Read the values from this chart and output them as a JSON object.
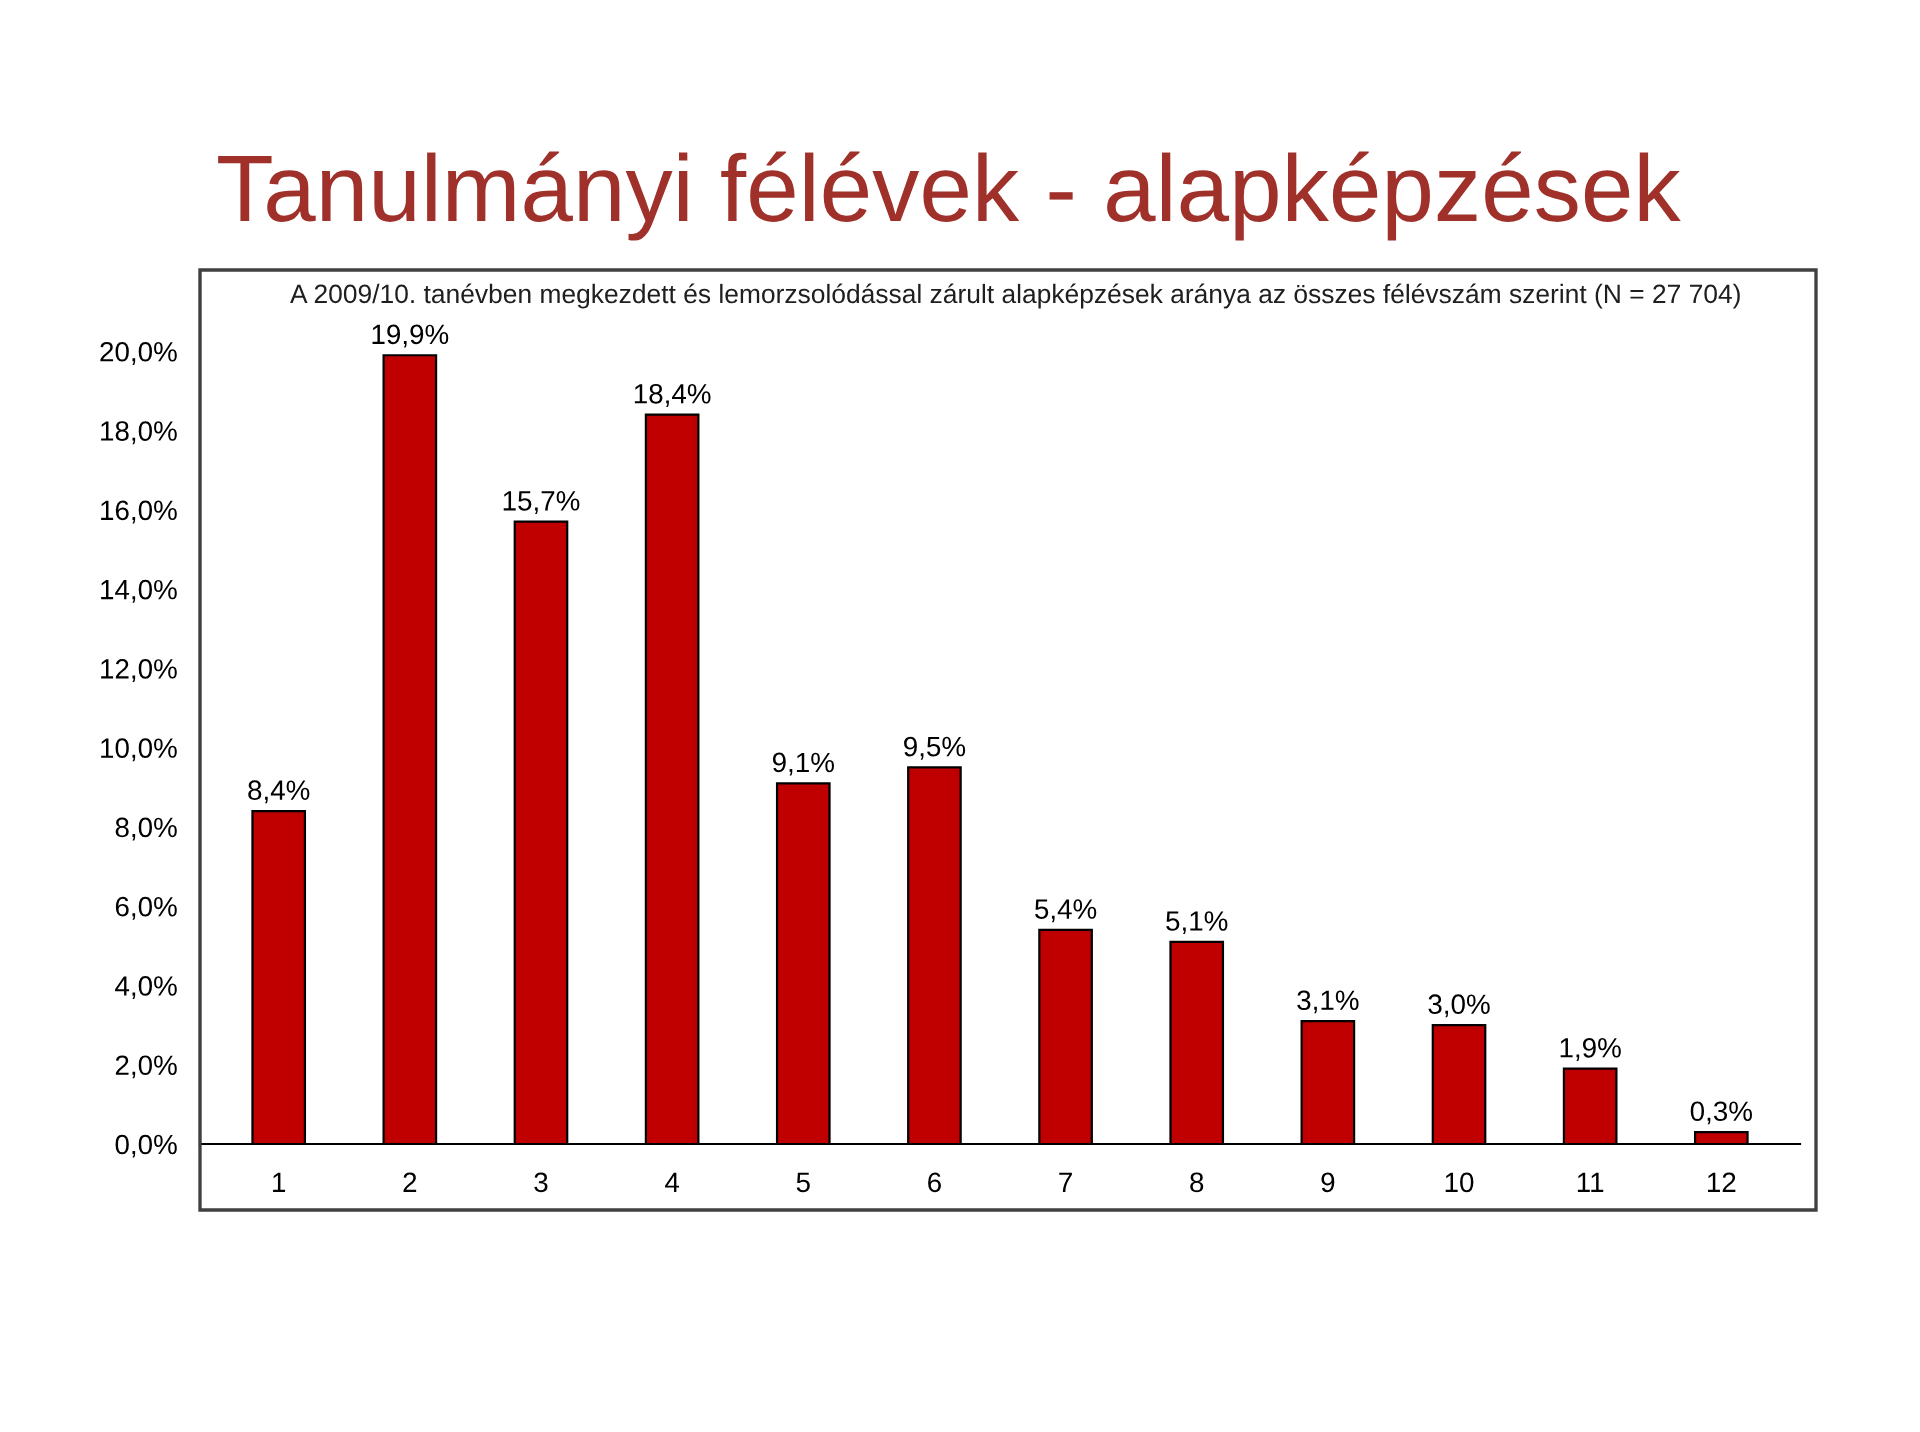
{
  "chart_data": {
    "type": "bar",
    "title": "Tanulmányi félévek - alapképzések",
    "subtitle": "A 2009/10. tanévben megkezdett és lemorzsolódással zárult alapképzések aránya az összes félévszám szerint (N = 27 704)",
    "categories": [
      "1",
      "2",
      "3",
      "4",
      "5",
      "6",
      "7",
      "8",
      "9",
      "10",
      "11",
      "12"
    ],
    "values": [
      8.4,
      19.9,
      15.7,
      18.4,
      9.1,
      9.5,
      5.4,
      5.1,
      3.1,
      3.0,
      1.9,
      0.3
    ],
    "value_labels": [
      "8,4%",
      "19,9%",
      "15,7%",
      "18,4%",
      "9,1%",
      "9,5%",
      "5,4%",
      "5,1%",
      "3,1%",
      "3,0%",
      "1,9%",
      "0,3%"
    ],
    "color": "#c00000",
    "ylim": [
      0,
      22
    ],
    "yticks": [
      {
        "value": 0,
        "label": "0,0%"
      },
      {
        "value": 2,
        "label": "2,0%"
      },
      {
        "value": 4,
        "label": "4,0%"
      },
      {
        "value": 6,
        "label": "6,0%"
      },
      {
        "value": 8,
        "label": "8,0%"
      },
      {
        "value": 10,
        "label": "10,0%"
      },
      {
        "value": 12,
        "label": "12,0%"
      },
      {
        "value": 14,
        "label": "14,0%"
      },
      {
        "value": 16,
        "label": "16,0%"
      },
      {
        "value": 18,
        "label": "18,0%"
      },
      {
        "value": 20,
        "label": "20,0%"
      }
    ],
    "grid": false,
    "legend": false
  }
}
